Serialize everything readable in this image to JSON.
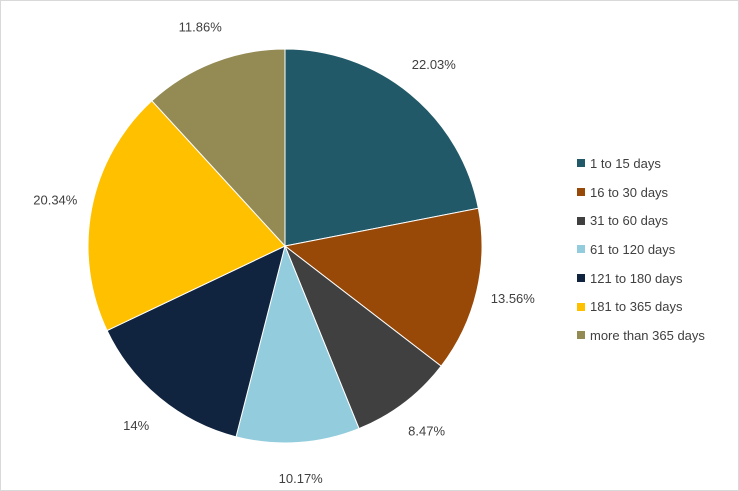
{
  "chart_data": {
    "type": "pie",
    "title": "",
    "legend_position": "right",
    "slices": [
      {
        "name": "1 to 15 days",
        "value": 22.03,
        "label": "22.03%",
        "color": "#215968"
      },
      {
        "name": "16 to 30 days",
        "value": 13.56,
        "label": "13.56%",
        "color": "#984807"
      },
      {
        "name": "31 to 60 days",
        "value": 8.47,
        "label": "8.47%",
        "color": "#404040"
      },
      {
        "name": "61 to 120 days",
        "value": 10.17,
        "label": "10.17%",
        "color": "#93CDDD"
      },
      {
        "name": "121 to 180 days",
        "value": 14,
        "label": "14%",
        "color": "#10233F"
      },
      {
        "name": "181 to 365 days",
        "value": 20.34,
        "label": "20.34%",
        "color": "#FFC000"
      },
      {
        "name": "more than 365 days",
        "value": 11.86,
        "label": "11.86%",
        "color": "#948A54"
      }
    ]
  }
}
